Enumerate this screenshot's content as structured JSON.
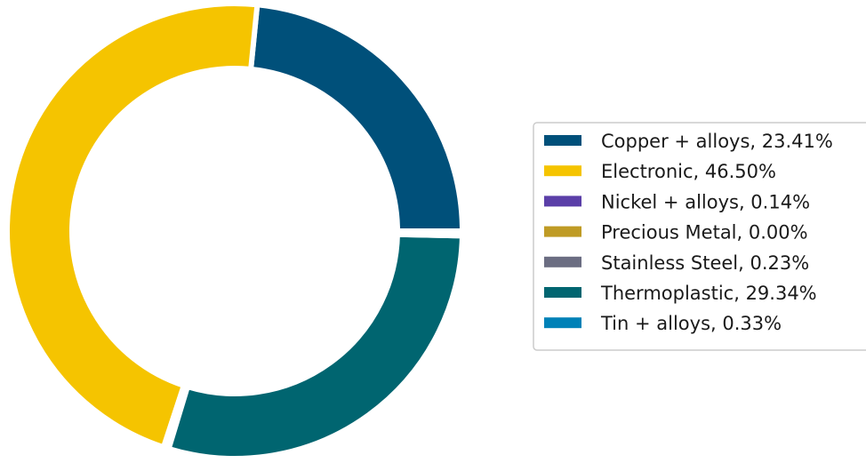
{
  "chart_data": {
    "type": "pie",
    "variant": "donut",
    "title": "",
    "legend_position": "right",
    "categories": [
      "Copper + alloys",
      "Electronic",
      "Nickel + alloys",
      "Precious Metal",
      "Stainless Steel",
      "Thermoplastic",
      "Tin + alloys"
    ],
    "values": [
      23.41,
      46.5,
      0.14,
      0.0,
      0.23,
      29.34,
      0.33
    ],
    "colors": [
      "#00507a",
      "#f5c400",
      "#5b3fa8",
      "#bf9b25",
      "#6b6d82",
      "#006570",
      "#0081b7"
    ],
    "legend_labels": [
      "Copper + alloys, 23.41%",
      "Electronic, 46.50%",
      "Nickel + alloys, 0.14%",
      "Precious Metal, 0.00%",
      "Stainless Steel, 0.23%",
      "Thermoplastic, 29.34%",
      "Tin + alloys, 0.33%"
    ]
  }
}
